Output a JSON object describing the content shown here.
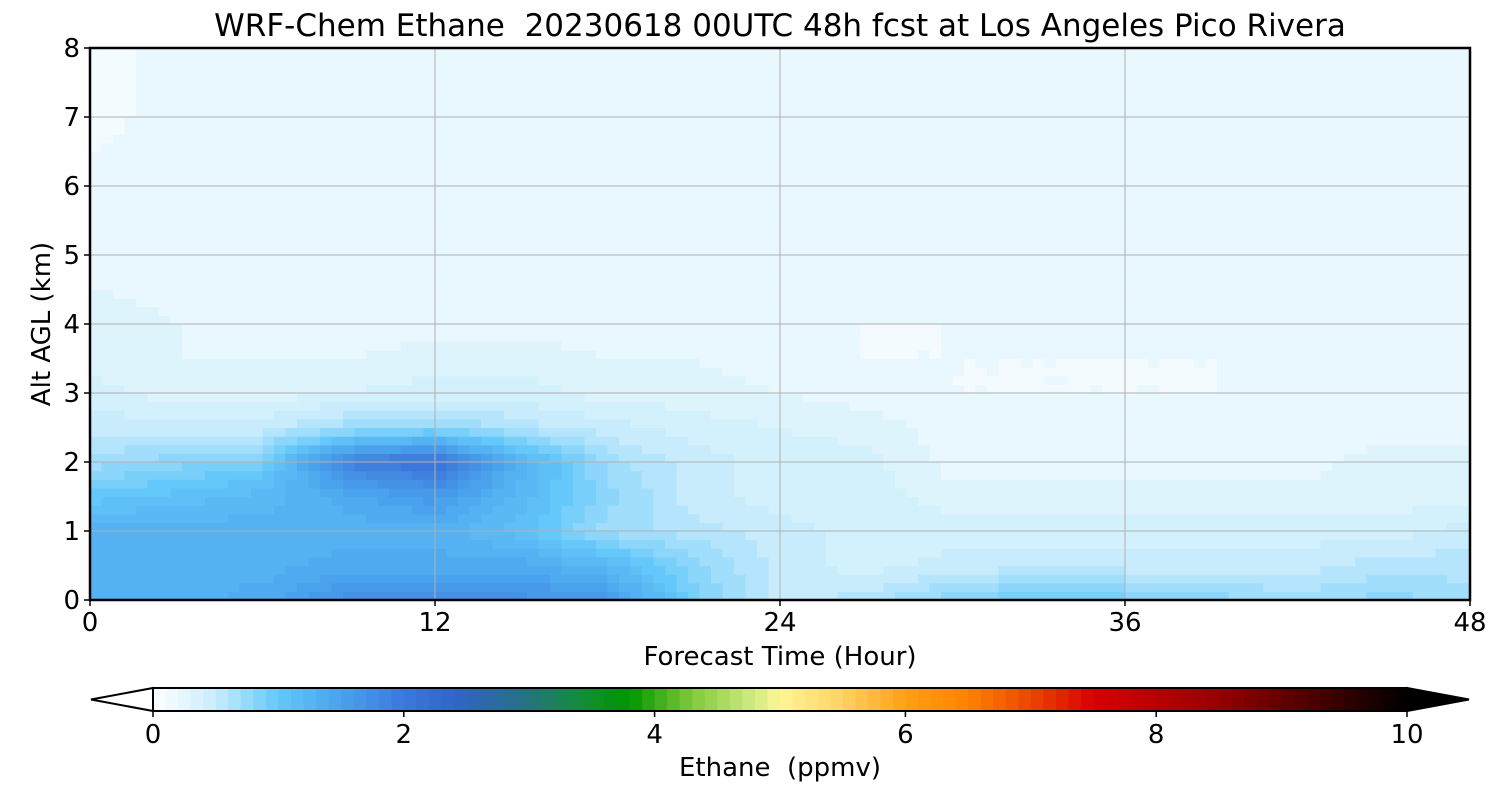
{
  "chart_data": {
    "type": "heatmap",
    "title": "WRF-Chem Ethane  20230618 00UTC 48h fcst at Los Angeles Pico Rivera",
    "xlabel": "Forecast Time (Hour)",
    "ylabel": "Alt AGL (km)",
    "xlim": [
      0,
      48
    ],
    "ylim": [
      0,
      8
    ],
    "xticks": [
      "0",
      "12",
      "24",
      "36",
      "48"
    ],
    "yticks": [
      "0",
      "1",
      "2",
      "3",
      "4",
      "5",
      "6",
      "7",
      "8"
    ],
    "grid": true,
    "colorbar": {
      "label": "Ethane  (ppmv)",
      "range": [
        0,
        10
      ],
      "ticks": [
        "0",
        "2",
        "4",
        "6",
        "8",
        "10"
      ],
      "extend": "both",
      "stops": [
        {
          "v": 0.0,
          "c": "#ffffff"
        },
        {
          "v": 0.5,
          "c": "#c8ecfc"
        },
        {
          "v": 1.0,
          "c": "#64c8fa"
        },
        {
          "v": 1.5,
          "c": "#4aa2ec"
        },
        {
          "v": 2.0,
          "c": "#3c78dc"
        },
        {
          "v": 2.4,
          "c": "#3264c8"
        },
        {
          "v": 2.9,
          "c": "#286e8c"
        },
        {
          "v": 3.4,
          "c": "#148c3c"
        },
        {
          "v": 3.8,
          "c": "#009600"
        },
        {
          "v": 4.3,
          "c": "#82c83c"
        },
        {
          "v": 4.8,
          "c": "#d2eb82"
        },
        {
          "v": 5.0,
          "c": "#fff596"
        },
        {
          "v": 5.5,
          "c": "#ffd264"
        },
        {
          "v": 6.0,
          "c": "#ffa014"
        },
        {
          "v": 6.5,
          "c": "#ff8200"
        },
        {
          "v": 7.0,
          "c": "#eb4600"
        },
        {
          "v": 7.5,
          "c": "#d70000"
        },
        {
          "v": 8.0,
          "c": "#b90000"
        },
        {
          "v": 8.5,
          "c": "#960000"
        },
        {
          "v": 9.0,
          "c": "#640000"
        },
        {
          "v": 9.5,
          "c": "#320000"
        },
        {
          "v": 10.0,
          "c": "#000000"
        }
      ]
    },
    "x": [
      0,
      3,
      6,
      9,
      12,
      15,
      18,
      21,
      24,
      27,
      30,
      33,
      36,
      39,
      42,
      45,
      48
    ],
    "y": [
      0,
      0.5,
      1,
      1.5,
      2,
      2.5,
      3,
      3.5,
      4,
      5,
      6,
      7,
      8
    ],
    "z": [
      [
        1.3,
        1.3,
        1.4,
        1.7,
        1.8,
        1.7,
        1.6,
        0.9,
        0.5,
        0.6,
        0.8,
        1.0,
        0.9,
        0.8,
        0.7,
        0.8,
        0.7
      ],
      [
        1.3,
        1.3,
        1.3,
        1.4,
        1.4,
        1.4,
        1.2,
        0.8,
        0.5,
        0.4,
        0.5,
        0.5,
        0.5,
        0.5,
        0.5,
        0.6,
        0.6
      ],
      [
        1.3,
        1.3,
        1.3,
        1.3,
        1.3,
        1.1,
        0.7,
        0.6,
        0.5,
        0.4,
        0.4,
        0.4,
        0.4,
        0.4,
        0.4,
        0.4,
        0.5
      ],
      [
        1.0,
        1.1,
        1.2,
        1.4,
        1.6,
        1.2,
        0.8,
        0.5,
        0.4,
        0.4,
        0.3,
        0.3,
        0.3,
        0.3,
        0.3,
        0.3,
        0.3
      ],
      [
        0.7,
        0.8,
        0.9,
        1.9,
        2.1,
        1.3,
        0.7,
        0.5,
        0.4,
        0.4,
        0.2,
        0.2,
        0.2,
        0.2,
        0.2,
        0.3,
        0.3
      ],
      [
        0.5,
        0.5,
        0.5,
        0.7,
        0.8,
        0.6,
        0.5,
        0.4,
        0.35,
        0.3,
        0.2,
        0.2,
        0.2,
        0.2,
        0.2,
        0.2,
        0.2
      ],
      [
        0.4,
        0.3,
        0.3,
        0.35,
        0.4,
        0.4,
        0.3,
        0.3,
        0.25,
        0.2,
        0.15,
        0.15,
        0.15,
        0.15,
        0.2,
        0.2,
        0.2
      ],
      [
        0.3,
        0.25,
        0.25,
        0.25,
        0.3,
        0.3,
        0.25,
        0.25,
        0.2,
        0.15,
        0.15,
        0.15,
        0.15,
        0.15,
        0.15,
        0.15,
        0.15
      ],
      [
        0.3,
        0.25,
        0.2,
        0.2,
        0.2,
        0.2,
        0.2,
        0.2,
        0.2,
        0.15,
        0.15,
        0.2,
        0.2,
        0.2,
        0.2,
        0.2,
        0.2
      ],
      [
        0.2,
        0.2,
        0.2,
        0.2,
        0.2,
        0.2,
        0.2,
        0.2,
        0.2,
        0.2,
        0.2,
        0.2,
        0.2,
        0.2,
        0.2,
        0.15,
        0.15
      ],
      [
        0.2,
        0.2,
        0.2,
        0.2,
        0.2,
        0.2,
        0.2,
        0.2,
        0.2,
        0.2,
        0.2,
        0.2,
        0.2,
        0.2,
        0.2,
        0.2,
        0.15
      ],
      [
        0.1,
        0.2,
        0.2,
        0.2,
        0.2,
        0.2,
        0.2,
        0.2,
        0.2,
        0.2,
        0.2,
        0.2,
        0.2,
        0.2,
        0.2,
        0.2,
        0.2
      ],
      [
        0.1,
        0.2,
        0.2,
        0.2,
        0.2,
        0.2,
        0.2,
        0.2,
        0.2,
        0.2,
        0.2,
        0.2,
        0.2,
        0.2,
        0.2,
        0.2,
        0.2
      ]
    ]
  }
}
